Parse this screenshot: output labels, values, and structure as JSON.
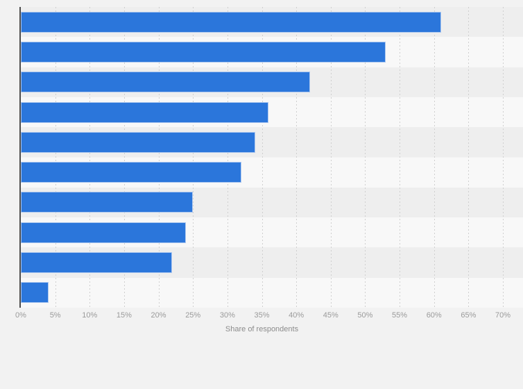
{
  "chart_data": {
    "type": "bar",
    "orientation": "horizontal",
    "values": [
      61,
      53,
      42,
      36,
      34,
      32,
      25,
      24,
      22,
      4
    ],
    "value_unit": "%",
    "xlabel": "Share of respondents",
    "ylabel": "",
    "xlim": [
      0,
      70
    ],
    "x_tick_interval": 5,
    "x_tick_labels": [
      "0%",
      "5%",
      "10%",
      "15%",
      "20%",
      "25%",
      "30%",
      "35%",
      "40%",
      "45%",
      "50%",
      "55%",
      "60%",
      "65%",
      "70%"
    ],
    "grid": "vertical-dashed",
    "legend": "none",
    "category_labels_visible": false
  },
  "style": {
    "page_background": "#f2f2f2",
    "row_band_dark": "#eeeeee",
    "row_band_light": "#f8f8f8",
    "bar_color": "#2b76db",
    "bar_border_color": "#aac6ef",
    "axis_line_color": "#4c4c4c",
    "gridline_color": "#cfcfcf",
    "tick_label_color": "#9a9a9a",
    "axis_title_color": "#8c8c8c"
  }
}
